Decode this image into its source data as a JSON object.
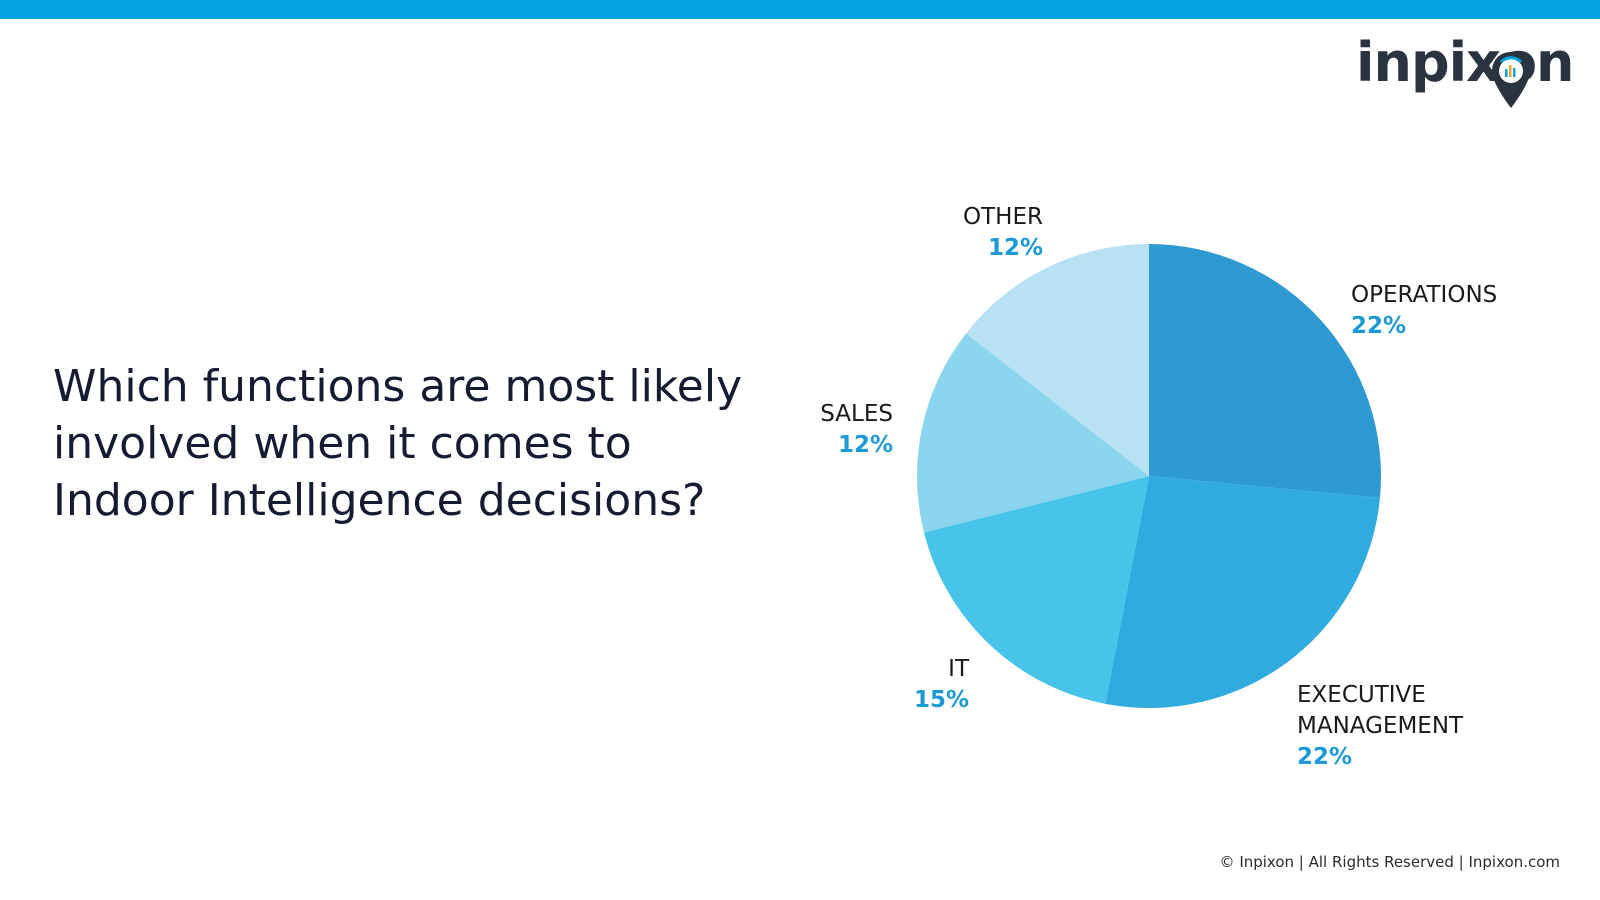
{
  "header": {
    "accent_color": "#03a3e1"
  },
  "logo": {
    "text": "inpixon",
    "text_color": "#2a3340",
    "pin_color": "#03a3e1"
  },
  "question": "Which functions are most likely involved when it comes to Indoor Intelligence decisions?",
  "chart_data": {
    "type": "pie",
    "title": "Which functions are most likely involved when it comes to Indoor Intelligence decisions?",
    "start_angle_deg": 0,
    "direction": "clockwise",
    "label_value_color": "#1b9ad6",
    "label_name_color": "#1a1a1a",
    "slices": [
      {
        "label": [
          "OPERATIONS"
        ],
        "value": 22,
        "value_label": "22%",
        "color": "#2e9ad3"
      },
      {
        "label": [
          "EXECUTIVE",
          "MANAGEMENT"
        ],
        "value": 22,
        "value_label": "22%",
        "color": "#30abdf"
      },
      {
        "label": [
          "IT"
        ],
        "value": 15,
        "value_label": "15%",
        "color": "#48c4ea"
      },
      {
        "label": [
          "SALES"
        ],
        "value": 12,
        "value_label": "12%",
        "color": "#8cd5ef"
      },
      {
        "label": [
          "OTHER"
        ],
        "value": 12,
        "value_label": "12%",
        "color": "#b8e2f4"
      }
    ]
  },
  "footer": {
    "text": "© Inpixon | All Rights Reserved | Inpixon.com"
  }
}
